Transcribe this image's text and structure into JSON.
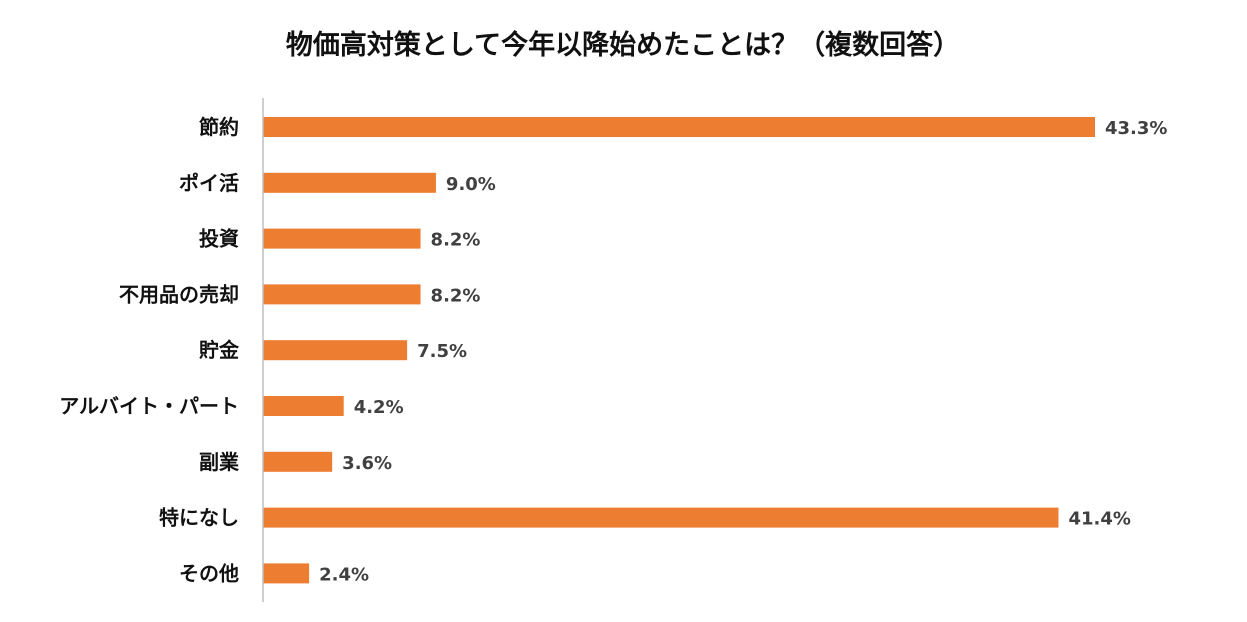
{
  "chart_data": {
    "type": "bar",
    "orientation": "horizontal",
    "title": "物価高対策として今年以降始めたことは？（複数回答）",
    "xlabel": "",
    "ylabel": "",
    "categories": [
      "節約",
      "ポイ活",
      "投資",
      "不用品の売却",
      "貯金",
      "アルバイト・パート",
      "副業",
      "特になし",
      "その他"
    ],
    "values": [
      43.3,
      9.0,
      8.2,
      8.2,
      7.5,
      4.2,
      3.6,
      41.4,
      2.4
    ],
    "value_labels": [
      "43.3%",
      "9.0%",
      "8.2%",
      "8.2%",
      "7.5%",
      "4.2%",
      "3.6%",
      "41.4%",
      "2.4%"
    ],
    "xlim": [
      0,
      45
    ],
    "grid": false,
    "legend": "none",
    "bar_color": "#ED7D31",
    "axis_color": "#BFBFBF"
  }
}
